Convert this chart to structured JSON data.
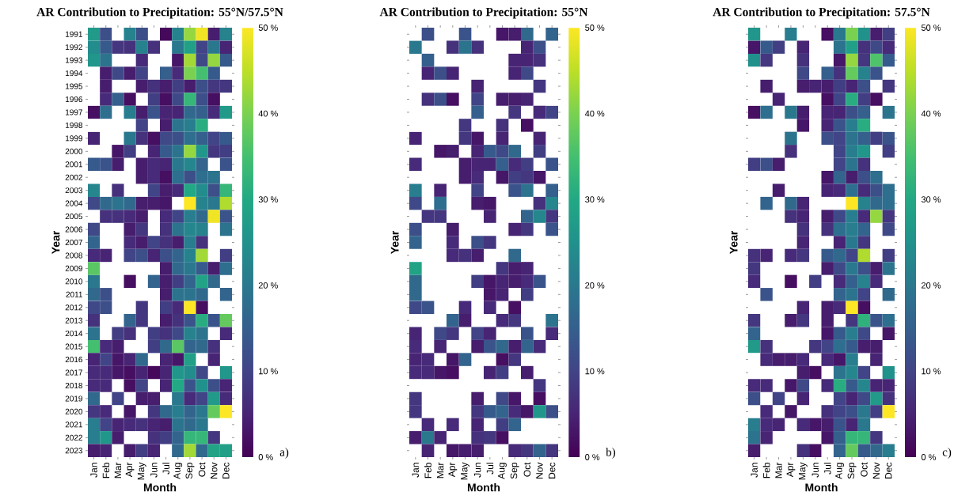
{
  "chart_data": [
    {
      "type": "heatmap",
      "title": "AR Contribution to Precipitation: 55°N/57.5°N",
      "xlabel": "Month",
      "ylabel": "Year",
      "categories": [
        "Jan",
        "Feb",
        "Mar",
        "Apr",
        "May",
        "Jun",
        "Jul",
        "Aug",
        "Sep",
        "Oct",
        "Nov",
        "Dec"
      ],
      "y_categories": [
        "1991",
        "1992",
        "1993",
        "1994",
        "1995",
        "1996",
        "1997",
        "1998",
        "1999",
        "2000",
        "2001",
        "2002",
        "2003",
        "2004",
        "2005",
        "2006",
        "2007",
        "2008",
        "2009",
        "2010",
        "2011",
        "2012",
        "2013",
        "2014",
        "2015",
        "2016",
        "2017",
        "2018",
        "2019",
        "2020",
        "2021",
        "2022",
        "2023"
      ],
      "cells": [
        [
          27,
          12,
          null,
          22,
          12,
          null,
          1,
          22,
          42,
          49,
          4,
          22
        ],
        [
          24,
          14,
          8,
          7,
          22,
          7,
          null,
          20,
          28,
          10,
          20,
          5
        ],
        [
          26,
          19,
          null,
          null,
          6,
          null,
          null,
          3,
          43,
          11,
          42,
          14
        ],
        [
          null,
          4,
          11,
          4,
          10,
          null,
          15,
          6,
          40,
          35,
          14,
          null
        ],
        [
          null,
          4,
          null,
          null,
          4,
          7,
          4,
          9,
          4,
          12,
          8,
          8
        ],
        [
          null,
          6,
          15,
          2,
          null,
          9,
          2,
          11,
          33,
          12,
          2,
          null
        ],
        [
          2,
          18,
          null,
          21,
          4,
          13,
          5,
          5,
          17,
          15,
          6,
          27
        ],
        [
          null,
          null,
          null,
          null,
          10,
          null,
          4,
          19,
          21,
          31,
          null,
          null
        ],
        [
          5,
          null,
          null,
          20,
          7,
          2,
          11,
          12,
          18,
          15,
          10,
          14
        ],
        [
          null,
          null,
          3,
          9,
          null,
          5,
          14,
          19,
          42,
          26,
          8,
          9
        ],
        [
          14,
          13,
          4,
          null,
          4,
          6,
          5,
          20,
          23,
          16,
          null,
          13
        ],
        [
          null,
          null,
          null,
          null,
          4,
          6,
          2,
          18,
          12,
          18,
          19,
          null
        ],
        [
          23,
          null,
          7,
          null,
          null,
          10,
          4,
          6,
          30,
          24,
          12,
          33
        ],
        [
          11,
          17,
          19,
          17,
          4,
          4,
          3,
          null,
          50,
          22,
          20,
          44
        ],
        [
          null,
          7,
          7,
          6,
          4,
          null,
          6,
          10,
          21,
          17,
          49,
          13
        ],
        [
          11,
          null,
          null,
          4,
          8,
          null,
          7,
          19,
          23,
          22,
          null,
          19
        ],
        [
          16,
          null,
          null,
          6,
          4,
          10,
          7,
          4,
          21,
          7,
          null,
          null
        ],
        [
          6,
          5,
          null,
          10,
          12,
          5,
          12,
          16,
          22,
          43,
          null,
          9
        ],
        [
          37,
          null,
          null,
          null,
          null,
          null,
          4,
          17,
          20,
          14,
          4,
          18
        ],
        [
          20,
          null,
          null,
          2,
          null,
          16,
          4,
          9,
          16,
          29,
          17,
          null
        ],
        [
          17,
          12,
          null,
          null,
          null,
          null,
          4,
          19,
          19,
          17,
          null,
          16
        ],
        [
          11,
          12,
          null,
          null,
          8,
          null,
          9,
          6,
          50,
          2,
          null,
          null
        ],
        [
          7,
          null,
          null,
          16,
          8,
          null,
          4,
          7,
          13,
          31,
          13,
          38
        ],
        [
          19,
          null,
          9,
          7,
          null,
          9,
          7,
          11,
          22,
          19,
          null,
          6
        ],
        [
          35,
          6,
          4,
          null,
          null,
          9,
          17,
          37,
          16,
          17,
          7,
          null
        ],
        [
          5,
          10,
          3,
          5,
          17,
          null,
          5,
          3,
          28,
          null,
          5,
          null
        ],
        [
          6,
          6,
          3,
          2,
          5,
          1,
          5,
          26,
          24,
          11,
          null,
          26
        ],
        [
          6,
          6,
          null,
          2,
          10,
          null,
          5,
          30,
          13,
          25,
          12,
          5
        ],
        [
          17,
          null,
          10,
          null,
          4,
          4,
          null,
          20,
          6,
          10,
          27,
          6
        ],
        [
          8,
          6,
          null,
          3,
          null,
          8,
          17,
          21,
          16,
          20,
          38,
          50
        ],
        [
          21,
          10,
          5,
          6,
          7,
          5,
          4,
          19,
          17,
          20,
          null,
          null
        ],
        [
          21,
          26,
          4,
          null,
          null,
          7,
          9,
          16,
          33,
          33,
          8,
          null
        ],
        [
          4,
          5,
          null,
          4,
          9,
          5,
          null,
          17,
          43,
          17,
          29,
          28
        ]
      ],
      "clim": [
        0,
        50
      ],
      "cticks": [
        {
          "value": 0,
          "label": "0 %"
        },
        {
          "value": 10,
          "label": "10 %"
        },
        {
          "value": 20,
          "label": "20 %"
        },
        {
          "value": 30,
          "label": "30 %"
        },
        {
          "value": 40,
          "label": "40 %"
        },
        {
          "value": 50,
          "label": "50 %"
        }
      ],
      "annotations": [
        "a)"
      ]
    },
    {
      "type": "heatmap",
      "title": "AR Contribution to Precipitation: 55°N",
      "xlabel": "Month",
      "ylabel": "Year",
      "categories": [
        "Jan",
        "Feb",
        "Mar",
        "Apr",
        "May",
        "Jun",
        "Jul",
        "Aug",
        "Sep",
        "Oct",
        "Nov",
        "Dec"
      ],
      "y_categories": [
        null,
        null,
        null,
        null,
        null,
        null,
        null,
        null,
        null,
        null,
        null,
        null,
        null,
        null,
        null,
        null,
        null,
        null,
        null,
        null,
        null,
        null,
        null,
        null,
        null,
        null,
        null,
        null,
        null,
        null,
        null,
        null,
        null
      ],
      "tick_labels": "x",
      "cells": [
        [
          null,
          12,
          null,
          null,
          13,
          null,
          null,
          3,
          4,
          17,
          null,
          16
        ],
        [
          20,
          null,
          null,
          7,
          19,
          7,
          null,
          null,
          null,
          5,
          12,
          null
        ],
        [
          null,
          15,
          null,
          null,
          null,
          null,
          null,
          null,
          5,
          5,
          7,
          null
        ],
        [
          null,
          5,
          12,
          5,
          null,
          null,
          null,
          null,
          5,
          11,
          null,
          null
        ],
        [
          null,
          null,
          null,
          null,
          null,
          5,
          null,
          null,
          null,
          null,
          8,
          null
        ],
        [
          null,
          7,
          12,
          2,
          null,
          10,
          null,
          4,
          4,
          5,
          null,
          null
        ],
        [
          null,
          null,
          null,
          null,
          null,
          15,
          null,
          null,
          8,
          null,
          6,
          10
        ],
        [
          null,
          null,
          null,
          null,
          8,
          null,
          null,
          7,
          null,
          2,
          null,
          null
        ],
        [
          5,
          null,
          null,
          null,
          8,
          3,
          null,
          5,
          null,
          null,
          5,
          null
        ],
        [
          null,
          null,
          3,
          4,
          null,
          5,
          14,
          11,
          17,
          null,
          9,
          null
        ],
        [
          6,
          null,
          null,
          null,
          4,
          5,
          5,
          15,
          6,
          9,
          null,
          13
        ],
        [
          null,
          null,
          null,
          null,
          4,
          6,
          null,
          3,
          9,
          8,
          3,
          null
        ],
        [
          21,
          null,
          5,
          null,
          null,
          10,
          null,
          null,
          13,
          19,
          null,
          15
        ],
        [
          11,
          null,
          18,
          null,
          null,
          4,
          3,
          null,
          null,
          null,
          7,
          23
        ],
        [
          null,
          8,
          8,
          null,
          null,
          null,
          5,
          null,
          null,
          16,
          23,
          8
        ],
        [
          12,
          null,
          null,
          4,
          null,
          null,
          null,
          null,
          5,
          8,
          null,
          13
        ],
        [
          16,
          null,
          null,
          6,
          null,
          12,
          8,
          null,
          null,
          null,
          null,
          null
        ],
        [
          null,
          null,
          null,
          6,
          7,
          4,
          null,
          null,
          17,
          null,
          null,
          null
        ],
        [
          29,
          null,
          null,
          null,
          null,
          null,
          null,
          8,
          4,
          5,
          null,
          null
        ],
        [
          17,
          null,
          null,
          null,
          null,
          9,
          3,
          5,
          4,
          6,
          13,
          null
        ],
        [
          17,
          null,
          null,
          null,
          null,
          null,
          3,
          5,
          null,
          9,
          null,
          null
        ],
        [
          11,
          13,
          null,
          null,
          6,
          null,
          6,
          null,
          2,
          null,
          null,
          null
        ],
        [
          null,
          null,
          null,
          16,
          4,
          null,
          null,
          6,
          8,
          null,
          null,
          19
        ],
        [
          5,
          null,
          11,
          8,
          null,
          10,
          5,
          null,
          null,
          13,
          null,
          6
        ],
        [
          6,
          null,
          5,
          null,
          null,
          4,
          13,
          17,
          4,
          16,
          6,
          null
        ],
        [
          5,
          6,
          null,
          3,
          16,
          null,
          null,
          2,
          8,
          null,
          null,
          null
        ],
        [
          6,
          6,
          3,
          2,
          null,
          null,
          5,
          9,
          null,
          4,
          null,
          null
        ],
        [
          null,
          null,
          null,
          null,
          null,
          null,
          null,
          null,
          null,
          null,
          8,
          null
        ],
        [
          8,
          null,
          null,
          null,
          null,
          4,
          null,
          11,
          3,
          null,
          2,
          null
        ],
        [
          8,
          null,
          null,
          null,
          null,
          8,
          14,
          16,
          6,
          3,
          26,
          12
        ],
        [
          null,
          6,
          null,
          6,
          null,
          5,
          null,
          9,
          16,
          null,
          null,
          null
        ],
        [
          4,
          20,
          5,
          null,
          null,
          7,
          8,
          2,
          null,
          null,
          null,
          null
        ],
        [
          null,
          5,
          null,
          3,
          4,
          4,
          null,
          null,
          6,
          8,
          16,
          8
        ]
      ],
      "clim": [
        0,
        50
      ],
      "cticks": [
        {
          "value": 0,
          "label": "0 %"
        },
        {
          "value": 10,
          "label": "10 %"
        },
        {
          "value": 20,
          "label": "20 %"
        },
        {
          "value": 30,
          "label": "30 %"
        },
        {
          "value": 40,
          "label": "40 %"
        },
        {
          "value": 50,
          "label": "50 %"
        }
      ],
      "annotations": [
        "b)"
      ]
    },
    {
      "type": "heatmap",
      "title": "AR Contribution to Precipitation: 57.5°N",
      "xlabel": "Month",
      "ylabel": "Year",
      "categories": [
        "Jan",
        "Feb",
        "Mar",
        "Apr",
        "May",
        "Jun",
        "Jul",
        "Aug",
        "Sep",
        "Oct",
        "Nov",
        "Dec"
      ],
      "y_categories": [
        null,
        null,
        null,
        null,
        null,
        null,
        null,
        null,
        null,
        null,
        null,
        null,
        null,
        null,
        null,
        null,
        null,
        null,
        null,
        null,
        null,
        null,
        null,
        null,
        null,
        null,
        null,
        null,
        null,
        null,
        null,
        null,
        null
      ],
      "tick_labels": "x",
      "cells": [
        [
          26,
          null,
          null,
          21,
          null,
          null,
          2,
          20,
          40,
          25,
          4,
          9
        ],
        [
          3,
          14,
          9,
          null,
          5,
          null,
          null,
          19,
          28,
          7,
          11,
          6
        ],
        [
          25,
          8,
          null,
          null,
          7,
          null,
          null,
          3,
          42,
          8,
          36,
          14
        ],
        [
          null,
          null,
          null,
          null,
          11,
          null,
          15,
          7,
          38,
          22,
          13,
          null
        ],
        [
          null,
          4,
          null,
          null,
          4,
          5,
          4,
          9,
          5,
          12,
          null,
          8
        ],
        [
          null,
          null,
          5,
          null,
          null,
          null,
          2,
          10,
          31,
          9,
          2,
          null
        ],
        [
          2,
          18,
          null,
          20,
          4,
          null,
          5,
          5,
          12,
          15,
          null,
          19
        ],
        [
          null,
          null,
          null,
          null,
          3,
          null,
          5,
          13,
          21,
          31,
          null,
          null
        ],
        [
          null,
          null,
          null,
          19,
          null,
          null,
          12,
          10,
          19,
          15,
          9,
          13
        ],
        [
          null,
          null,
          null,
          7,
          null,
          null,
          null,
          10,
          21,
          26,
          null,
          9
        ],
        [
          9,
          12,
          4,
          null,
          null,
          null,
          null,
          10,
          19,
          7,
          null,
          null
        ],
        [
          null,
          null,
          null,
          null,
          null,
          null,
          3,
          16,
          4,
          12,
          18,
          null
        ],
        [
          null,
          null,
          4,
          null,
          null,
          null,
          5,
          6,
          18,
          6,
          12,
          18
        ],
        [
          null,
          16,
          null,
          17,
          5,
          null,
          null,
          null,
          50,
          22,
          17,
          18
        ],
        [
          null,
          null,
          null,
          7,
          5,
          null,
          4,
          11,
          21,
          6,
          42,
          8
        ],
        [
          null,
          null,
          null,
          null,
          7,
          null,
          7,
          18,
          21,
          16,
          null,
          11
        ],
        [
          null,
          null,
          null,
          null,
          5,
          null,
          null,
          5,
          20,
          8,
          null,
          null
        ],
        [
          7,
          5,
          null,
          6,
          8,
          null,
          14,
          17,
          10,
          44,
          null,
          9
        ],
        [
          8,
          null,
          null,
          null,
          null,
          null,
          4,
          11,
          20,
          12,
          4,
          19
        ],
        [
          6,
          null,
          null,
          2,
          null,
          9,
          null,
          6,
          15,
          22,
          6,
          null
        ],
        [
          null,
          13,
          null,
          null,
          null,
          null,
          null,
          16,
          19,
          10,
          null,
          17
        ],
        [
          null,
          null,
          null,
          null,
          5,
          null,
          4,
          6,
          50,
          2,
          null,
          null
        ],
        [
          8,
          null,
          null,
          4,
          8,
          null,
          4,
          null,
          8,
          32,
          13,
          18
        ],
        [
          16,
          null,
          null,
          null,
          null,
          null,
          3,
          14,
          21,
          11,
          null,
          3
        ],
        [
          27,
          7,
          null,
          null,
          null,
          8,
          10,
          18,
          14,
          4,
          4,
          null
        ],
        [
          null,
          6,
          4,
          4,
          6,
          null,
          6,
          3,
          21,
          null,
          5,
          null
        ],
        [
          null,
          null,
          null,
          null,
          4,
          2,
          null,
          19,
          23,
          10,
          null,
          25
        ],
        [
          6,
          6,
          null,
          3,
          11,
          null,
          6,
          31,
          14,
          23,
          5,
          5
        ],
        [
          12,
          null,
          10,
          null,
          5,
          null,
          null,
          10,
          5,
          11,
          27,
          7
        ],
        [
          null,
          6,
          null,
          3,
          null,
          null,
          7,
          10,
          12,
          20,
          9,
          50
        ],
        [
          21,
          6,
          5,
          null,
          6,
          3,
          4,
          13,
          5,
          20,
          null,
          null
        ],
        [
          19,
          5,
          null,
          null,
          null,
          null,
          3,
          15,
          33,
          33,
          8,
          null
        ],
        [
          4,
          null,
          null,
          null,
          7,
          2,
          null,
          16,
          38,
          14,
          17,
          21
        ]
      ],
      "clim": [
        0,
        50
      ],
      "cticks": [
        {
          "value": 0,
          "label": "0 %"
        },
        {
          "value": 10,
          "label": "10 %"
        },
        {
          "value": 20,
          "label": "20 %"
        },
        {
          "value": 30,
          "label": "30 %"
        },
        {
          "value": 40,
          "label": "40 %"
        },
        {
          "value": 50,
          "label": "50 %"
        }
      ],
      "annotations": [
        "c)"
      ]
    }
  ]
}
